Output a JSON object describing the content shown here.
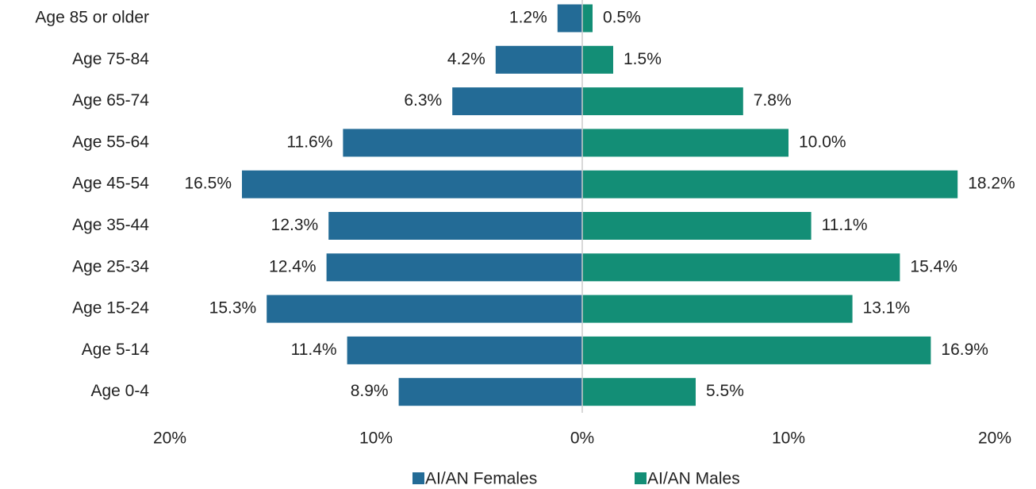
{
  "chart_data": {
    "type": "bar",
    "orientation": "horizontal",
    "categories": [
      "Age 85 or older",
      "Age 75-84",
      "Age 65-74",
      "Age 55-64",
      "Age 45-54",
      "Age 35-44",
      "Age 25-34",
      "Age 15-24",
      "Age 5-14",
      "Age 0-4"
    ],
    "series": [
      {
        "name": "AI/AN Females",
        "color": "#236b96",
        "values": [
          1.2,
          4.2,
          6.3,
          11.6,
          16.5,
          12.3,
          12.4,
          15.3,
          11.4,
          8.9
        ],
        "value_labels": [
          "1.2%",
          "4.2%",
          "6.3%",
          "11.6%",
          "16.5%",
          "12.3%",
          "12.4%",
          "15.3%",
          "11.4%",
          "8.9%"
        ]
      },
      {
        "name": "AI/AN Males",
        "color": "#138e76",
        "values": [
          0.5,
          1.5,
          7.8,
          10.0,
          18.2,
          11.1,
          15.4,
          13.1,
          16.9,
          5.5
        ],
        "value_labels": [
          "0.5%",
          "1.5%",
          "7.8%",
          "10.0%",
          "18.2%",
          "11.1%",
          "15.4%",
          "13.1%",
          "16.9%",
          "5.5%"
        ]
      }
    ],
    "xlim": [
      -20,
      20
    ],
    "xticks": [
      {
        "value": -20,
        "label": "20%"
      },
      {
        "value": -10,
        "label": "10%"
      },
      {
        "value": 0,
        "label": "0%"
      },
      {
        "value": 10,
        "label": "10%"
      },
      {
        "value": 20,
        "label": "20%"
      }
    ],
    "legend": "bottom"
  }
}
